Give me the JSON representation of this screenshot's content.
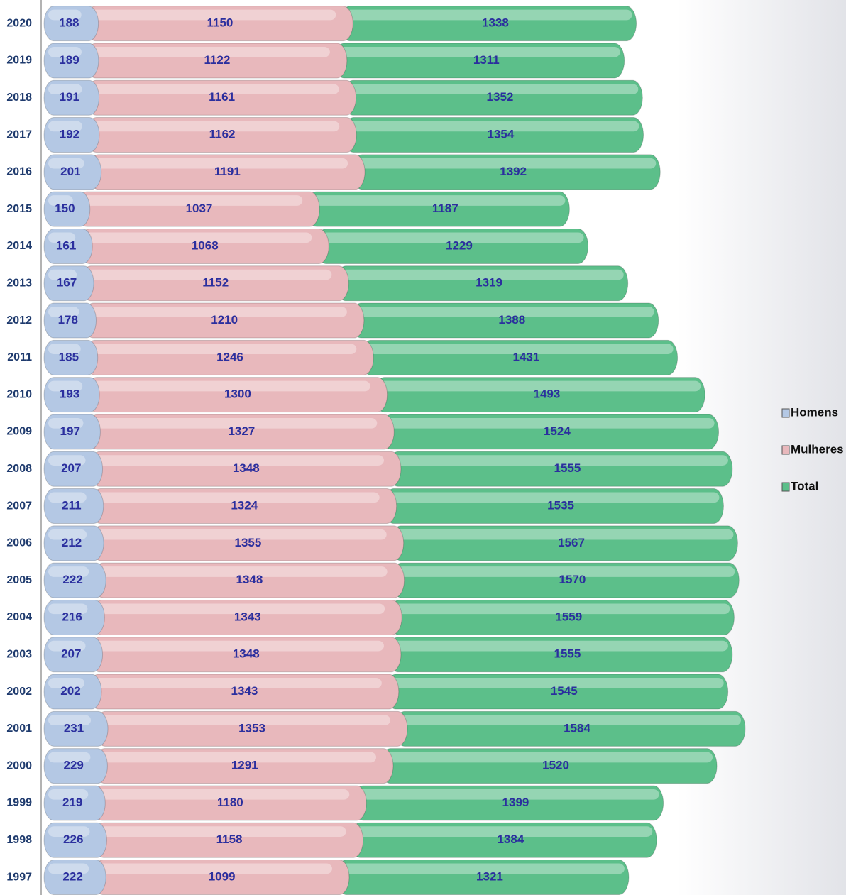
{
  "chart_data": {
    "type": "stacked-barh",
    "categories": [
      "2020",
      "2019",
      "2018",
      "2017",
      "2016",
      "2015",
      "2014",
      "2013",
      "2012",
      "2011",
      "2010",
      "2009",
      "2008",
      "2007",
      "2006",
      "2005",
      "2004",
      "2003",
      "2002",
      "2001",
      "2000",
      "1999",
      "1998",
      "1997"
    ],
    "series": [
      {
        "name": "Homens",
        "color": "#b4c8e4",
        "values": [
          188,
          189,
          191,
          192,
          201,
          150,
          161,
          167,
          178,
          185,
          193,
          197,
          207,
          211,
          212,
          222,
          216,
          207,
          202,
          231,
          229,
          219,
          226,
          222
        ]
      },
      {
        "name": "Mulheres",
        "color": "#e8b8bc",
        "values": [
          1150,
          1122,
          1161,
          1162,
          1191,
          1037,
          1068,
          1152,
          1210,
          1246,
          1300,
          1327,
          1348,
          1324,
          1355,
          1348,
          1343,
          1348,
          1343,
          1353,
          1291,
          1180,
          1158,
          1099
        ]
      },
      {
        "name": "Total",
        "color": "#5cbf8a",
        "values": [
          1338,
          1311,
          1352,
          1354,
          1392,
          1187,
          1229,
          1319,
          1388,
          1431,
          1493,
          1524,
          1555,
          1535,
          1567,
          1570,
          1559,
          1555,
          1545,
          1584,
          1520,
          1399,
          1384,
          1321
        ]
      }
    ],
    "legend": "right"
  }
}
